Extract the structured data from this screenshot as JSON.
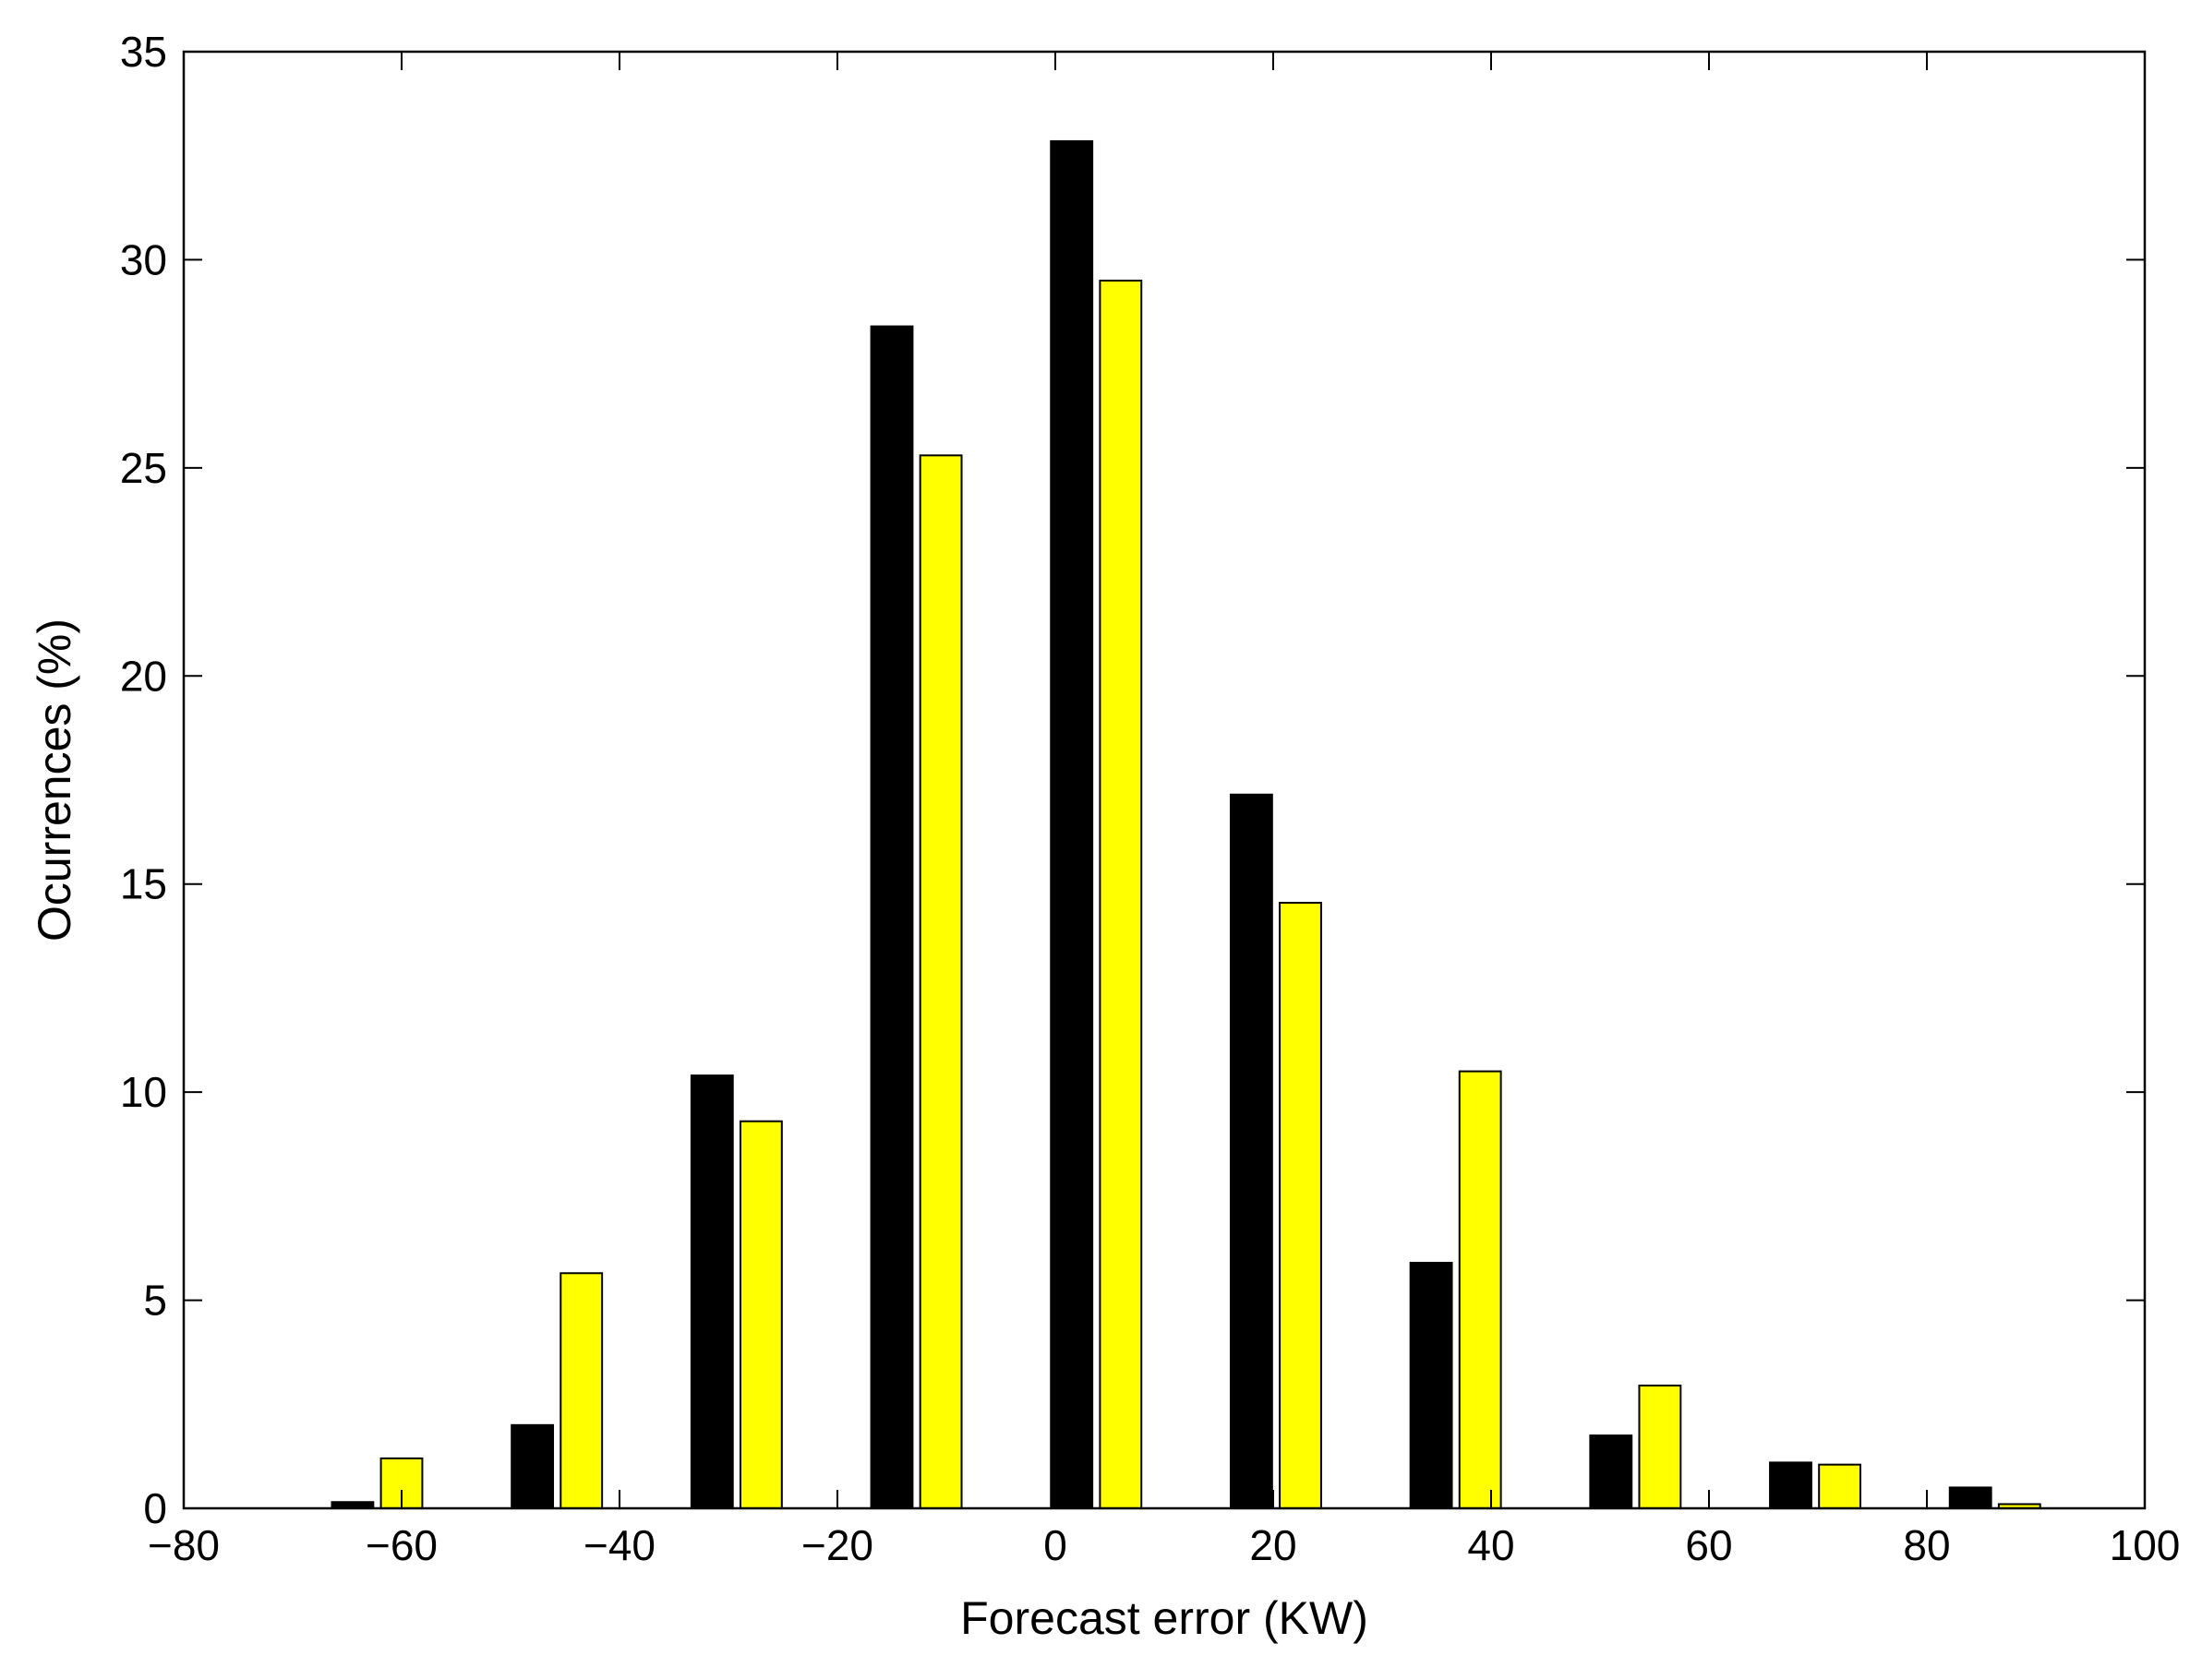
{
  "chart_data": {
    "type": "bar",
    "title": "",
    "xlabel": "Forecast error (KW)",
    "ylabel": "Ocurrences (%)",
    "xlim": [
      -80,
      100
    ],
    "ylim": [
      0,
      35
    ],
    "xticks": [
      -80,
      -60,
      -40,
      -20,
      0,
      20,
      40,
      60,
      80,
      100
    ],
    "yticks": [
      0,
      5,
      10,
      15,
      20,
      25,
      30,
      35
    ],
    "xtick_labels": [
      "−80",
      "−60",
      "−40",
      "−20",
      "0",
      "20",
      "40",
      "60",
      "80",
      "100"
    ],
    "ytick_labels": [
      "0",
      "5",
      "10",
      "15",
      "20",
      "25",
      "30",
      "35"
    ],
    "grid": false,
    "legend": null,
    "bar_width": 3.8,
    "series": [
      {
        "color": "#000000",
        "x": [
          -64.5,
          -48.0,
          -31.5,
          -15.0,
          1.5,
          18.0,
          34.5,
          51.0,
          67.5,
          84.0
        ],
        "values": [
          0.15,
          2.0,
          10.4,
          28.4,
          32.85,
          17.15,
          5.9,
          1.75,
          1.1,
          0.5
        ]
      },
      {
        "color": "#ffff00",
        "x": [
          -60.0,
          -43.5,
          -27.0,
          -10.5,
          6.0,
          22.5,
          39.0,
          55.5,
          72.0,
          88.5
        ],
        "values": [
          1.2,
          5.65,
          9.3,
          25.3,
          29.5,
          14.55,
          10.5,
          2.95,
          1.05,
          0.1
        ]
      }
    ]
  }
}
